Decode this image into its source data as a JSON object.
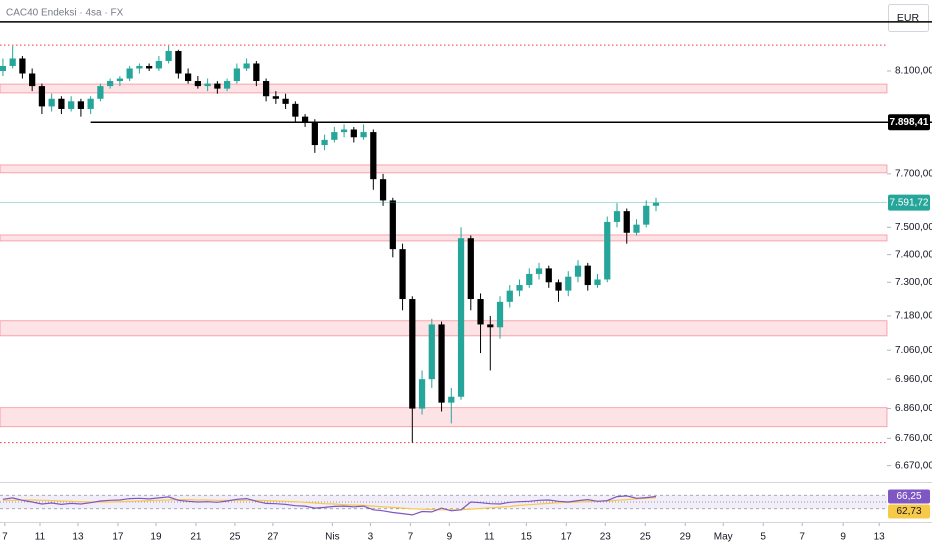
{
  "chart_data": {
    "type": "candlestick",
    "title": "CAC40 Endeksi · 4sa · FX",
    "currency": "EUR",
    "log_scale": true,
    "grid": false,
    "up_color": "#26a69a",
    "down_color": "#000000",
    "ylim": [
      6623,
      8388
    ],
    "yticks": [
      {
        "value": 8100,
        "label": "8.100,00"
      },
      {
        "value": 7700,
        "label": "7.700,00"
      },
      {
        "value": 7500,
        "label": "7.500,00"
      },
      {
        "value": 7400,
        "label": "7.400,00"
      },
      {
        "value": 7300,
        "label": "7.300,00"
      },
      {
        "value": 7180,
        "label": "7.180,00"
      },
      {
        "value": 7060,
        "label": "7.060,00"
      },
      {
        "value": 6960,
        "label": "6.960,00"
      },
      {
        "value": 6860,
        "label": "6.860,00"
      },
      {
        "value": 6760,
        "label": "6.760,00"
      },
      {
        "value": 6670,
        "label": "6.670,00"
      }
    ],
    "xlim": [
      -0.3,
      90.7
    ],
    "xticks": [
      {
        "value": 0.2,
        "label": "7"
      },
      {
        "value": 3.8,
        "label": "11"
      },
      {
        "value": 7.7,
        "label": "13"
      },
      {
        "value": 11.8,
        "label": "17"
      },
      {
        "value": 15.7,
        "label": "19"
      },
      {
        "value": 19.8,
        "label": "21"
      },
      {
        "value": 23.8,
        "label": "25"
      },
      {
        "value": 27.7,
        "label": "27"
      },
      {
        "value": 33.8,
        "label": "Nis"
      },
      {
        "value": 37.7,
        "label": "3"
      },
      {
        "value": 41.8,
        "label": "7"
      },
      {
        "value": 45.8,
        "label": "9"
      },
      {
        "value": 49.9,
        "label": "11"
      },
      {
        "value": 53.7,
        "label": "15"
      },
      {
        "value": 57.8,
        "label": "17"
      },
      {
        "value": 61.8,
        "label": "23"
      },
      {
        "value": 65.9,
        "label": "25"
      },
      {
        "value": 70,
        "label": "29"
      },
      {
        "value": 73.9,
        "label": "May"
      },
      {
        "value": 78,
        "label": "5"
      },
      {
        "value": 82,
        "label": "7"
      },
      {
        "value": 86.2,
        "label": "9"
      },
      {
        "value": 89.9,
        "label": "13"
      }
    ],
    "x": [
      0,
      1,
      2,
      3,
      4,
      5,
      6,
      7,
      8,
      9,
      10,
      11,
      12,
      13,
      14,
      15,
      16,
      17,
      18,
      19,
      20,
      21,
      22,
      23,
      24,
      25,
      26,
      27,
      28,
      29,
      30,
      31,
      32,
      33,
      34,
      35,
      36,
      37,
      38,
      39,
      40,
      41,
      42,
      43,
      44,
      45,
      46,
      47,
      48,
      49,
      50,
      51,
      52,
      53,
      54,
      55,
      56,
      57,
      58,
      59,
      60,
      61,
      62,
      63,
      64,
      65,
      66,
      67
    ],
    "candles": [
      [
        8100,
        8150,
        8080,
        8120
      ],
      [
        8120,
        8200,
        8110,
        8150
      ],
      [
        8150,
        8160,
        8070,
        8090
      ],
      [
        8090,
        8110,
        8020,
        8040
      ],
      [
        8040,
        8050,
        7930,
        7960
      ],
      [
        7960,
        8010,
        7940,
        7990
      ],
      [
        7990,
        8000,
        7930,
        7950
      ],
      [
        7950,
        8000,
        7940,
        7980
      ],
      [
        7980,
        7990,
        7920,
        7950
      ],
      [
        7950,
        8000,
        7930,
        7990
      ],
      [
        7990,
        8050,
        7980,
        8040
      ],
      [
        8040,
        8070,
        8030,
        8060
      ],
      [
        8060,
        8080,
        8040,
        8070
      ],
      [
        8070,
        8120,
        8060,
        8110
      ],
      [
        8110,
        8130,
        8090,
        8120
      ],
      [
        8120,
        8130,
        8100,
        8110
      ],
      [
        8110,
        8160,
        8100,
        8140
      ],
      [
        8140,
        8200,
        8130,
        8180
      ],
      [
        8180,
        8185,
        8070,
        8090
      ],
      [
        8090,
        8110,
        8050,
        8060
      ],
      [
        8060,
        8080,
        8030,
        8040
      ],
      [
        8040,
        8070,
        8020,
        8050
      ],
      [
        8050,
        8060,
        8010,
        8030
      ],
      [
        8030,
        8070,
        8020,
        8060
      ],
      [
        8060,
        8130,
        8050,
        8110
      ],
      [
        8110,
        8150,
        8100,
        8130
      ],
      [
        8130,
        8140,
        8040,
        8060
      ],
      [
        8060,
        8070,
        7980,
        8000
      ],
      [
        8000,
        8020,
        7970,
        7990
      ],
      [
        7990,
        8010,
        7950,
        7970
      ],
      [
        7970,
        7980,
        7900,
        7920
      ],
      [
        7920,
        7930,
        7880,
        7900
      ],
      [
        7900,
        7910,
        7780,
        7810
      ],
      [
        7810,
        7850,
        7790,
        7830
      ],
      [
        7830,
        7880,
        7820,
        7860
      ],
      [
        7860,
        7890,
        7840,
        7870
      ],
      [
        7870,
        7880,
        7820,
        7840
      ],
      [
        7840,
        7890,
        7830,
        7860
      ],
      [
        7860,
        7870,
        7640,
        7680
      ],
      [
        7680,
        7700,
        7580,
        7600
      ],
      [
        7600,
        7610,
        7390,
        7420
      ],
      [
        7420,
        7440,
        7200,
        7240
      ],
      [
        7240,
        7250,
        6746,
        6860
      ],
      [
        6860,
        6990,
        6840,
        6960
      ],
      [
        6960,
        7170,
        6930,
        7150
      ],
      [
        7150,
        7160,
        6850,
        6880
      ],
      [
        6880,
        6930,
        6810,
        6900
      ],
      [
        6900,
        7500,
        6890,
        7460
      ],
      [
        7460,
        7470,
        7200,
        7240
      ],
      [
        7240,
        7260,
        7050,
        7150
      ],
      [
        7150,
        7180,
        6990,
        7140
      ],
      [
        7140,
        7250,
        7100,
        7230
      ],
      [
        7230,
        7290,
        7210,
        7270
      ],
      [
        7270,
        7310,
        7250,
        7290
      ],
      [
        7290,
        7350,
        7280,
        7330
      ],
      [
        7330,
        7370,
        7310,
        7350
      ],
      [
        7350,
        7360,
        7280,
        7300
      ],
      [
        7300,
        7310,
        7230,
        7270
      ],
      [
        7270,
        7340,
        7250,
        7320
      ],
      [
        7320,
        7380,
        7300,
        7360
      ],
      [
        7360,
        7370,
        7270,
        7290
      ],
      [
        7290,
        7330,
        7280,
        7310
      ],
      [
        7310,
        7540,
        7300,
        7520
      ],
      [
        7520,
        7590,
        7500,
        7560
      ],
      [
        7560,
        7570,
        7440,
        7480
      ],
      [
        7480,
        7530,
        7470,
        7510
      ],
      [
        7510,
        7600,
        7500,
        7580
      ],
      [
        7580,
        7610,
        7560,
        7591.72
      ]
    ],
    "last_price_label": "7.591,72",
    "last_price_color": "#26a69a",
    "zones": [
      [
        8013,
        8048
      ],
      [
        7704,
        7734
      ],
      [
        7450,
        7472
      ],
      [
        7110,
        7163
      ],
      [
        6799,
        6863
      ]
    ],
    "zone_color": "#f23645",
    "dotted_levels": [
      8204,
      6746
    ],
    "solid_levels": [
      {
        "value": 8298
      },
      {
        "value": 7898.41,
        "label": "7.898,41",
        "from": 9
      }
    ],
    "rsi": {
      "ylim": [
        0,
        100
      ],
      "levels": [
        70,
        50,
        30
      ],
      "color": "#7e57c2",
      "values": [
        58,
        62,
        55,
        50,
        44,
        47,
        43,
        46,
        44,
        48,
        53,
        55,
        56,
        60,
        61,
        59,
        62,
        65,
        55,
        52,
        50,
        51,
        49,
        53,
        58,
        60,
        52,
        46,
        45,
        43,
        39,
        38,
        32,
        34,
        37,
        38,
        36,
        38,
        27,
        24,
        19,
        16,
        12,
        22,
        21,
        32,
        24,
        27,
        50,
        48,
        45,
        44,
        49,
        51,
        52,
        55,
        56,
        52,
        50,
        54,
        57,
        52,
        54,
        66,
        68,
        61,
        63,
        66.25
      ],
      "last_label": "66,25"
    },
    "rsi_ma": {
      "color": "#f7c948",
      "values": [
        55,
        55,
        56,
        56,
        55,
        54,
        53,
        52,
        51,
        50,
        50,
        50,
        51,
        52,
        53,
        54,
        55,
        56,
        57,
        57,
        56,
        56,
        55,
        55,
        55,
        55,
        55,
        54,
        53,
        52,
        51,
        49,
        47,
        45,
        44,
        42,
        41,
        40,
        38,
        36,
        34,
        32,
        30,
        29,
        28,
        27,
        27,
        27,
        29,
        31,
        33,
        35,
        37,
        40,
        42,
        44,
        46,
        48,
        49,
        50,
        51,
        52,
        53,
        55,
        57,
        59,
        61,
        62.73
      ],
      "last_label": "62,73"
    }
  }
}
